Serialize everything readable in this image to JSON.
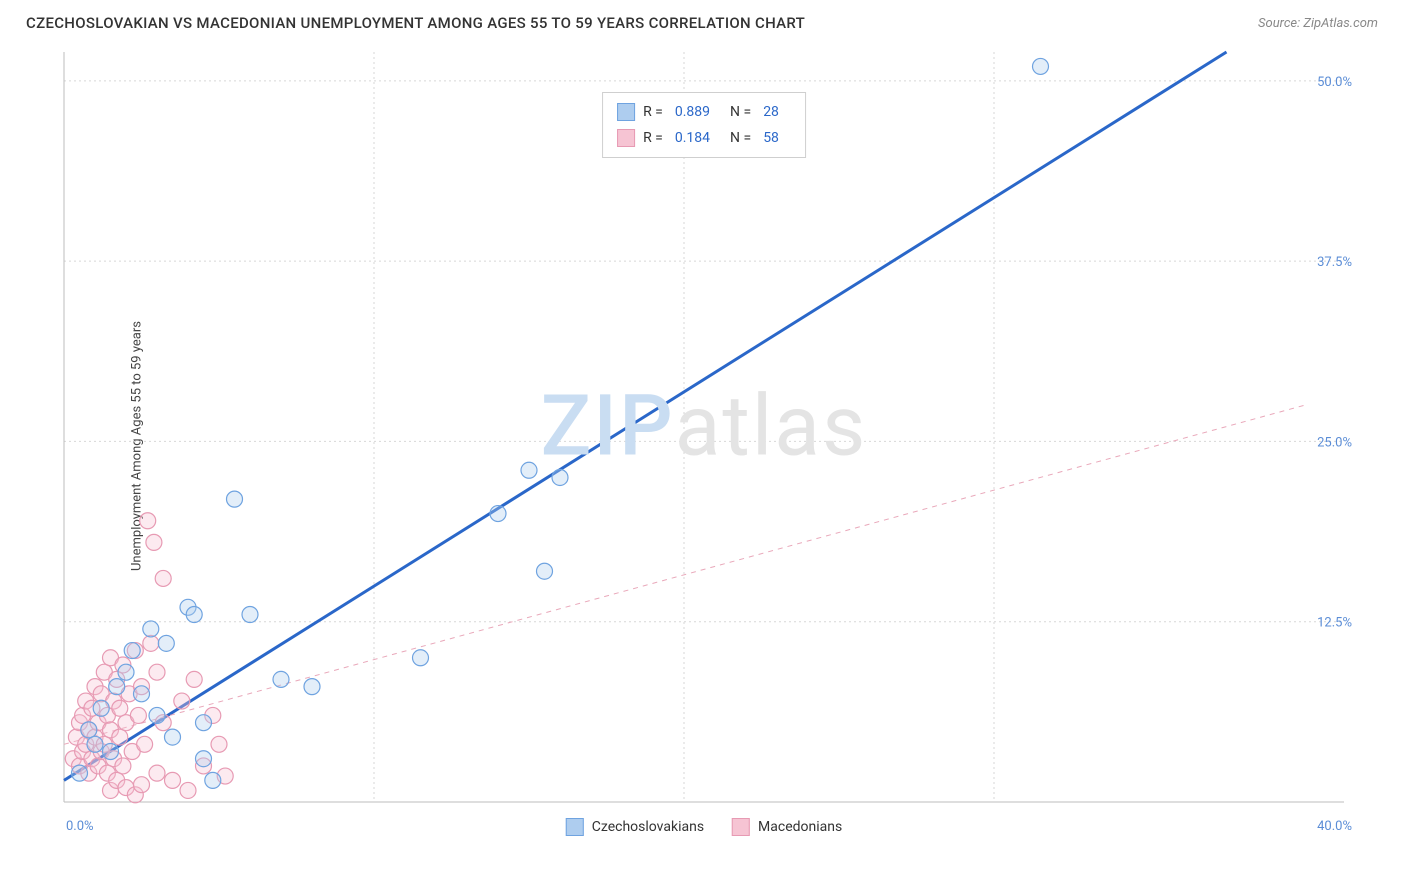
{
  "title": "CZECHOSLOVAKIAN VS MACEDONIAN UNEMPLOYMENT AMONG AGES 55 TO 59 YEARS CORRELATION CHART",
  "source": "Source: ZipAtlas.com",
  "ylabel": "Unemployment Among Ages 55 to 59 years",
  "watermark": {
    "part1": "ZIP",
    "part2": "atlas"
  },
  "chart": {
    "type": "scatter",
    "background_color": "#ffffff",
    "grid_color": "#d7d7d7",
    "axis_color": "#bdbdbd",
    "tick_label_color": "#5b8dd6",
    "tick_label_fontsize": 13,
    "title_fontsize": 15,
    "title_color": "#333333",
    "marker_radius": 8,
    "marker_fill_opacity": 0.35,
    "xlim": [
      0,
      40
    ],
    "ylim": [
      0,
      52
    ],
    "x_ticks": [
      {
        "value": 0,
        "label": "0.0%"
      },
      {
        "value": 40,
        "label": "40.0%"
      }
    ],
    "y_ticks": [
      {
        "value": 12.5,
        "label": "12.5%"
      },
      {
        "value": 25.0,
        "label": "25.0%"
      },
      {
        "value": 37.5,
        "label": "37.5%"
      },
      {
        "value": 50.0,
        "label": "50.0%"
      }
    ],
    "x_minor_grid": [
      10,
      20,
      30
    ],
    "series": [
      {
        "id": "czech",
        "name": "Czechoslovakians",
        "stroke": "#6fa3e0",
        "fill": "#aecdef",
        "r_value": "0.889",
        "n_value": "28",
        "trend": {
          "style": "solid",
          "color": "#2a67c9",
          "width": 3,
          "from": [
            0,
            1.5
          ],
          "to": [
            37.5,
            52
          ]
        },
        "points": [
          [
            0.5,
            2.0
          ],
          [
            0.8,
            5.0
          ],
          [
            1.0,
            4.0
          ],
          [
            1.2,
            6.5
          ],
          [
            1.5,
            3.5
          ],
          [
            1.7,
            8.0
          ],
          [
            2.0,
            9.0
          ],
          [
            2.2,
            10.5
          ],
          [
            2.5,
            7.5
          ],
          [
            2.8,
            12.0
          ],
          [
            3.0,
            6.0
          ],
          [
            3.3,
            11.0
          ],
          [
            3.5,
            4.5
          ],
          [
            4.0,
            13.5
          ],
          [
            4.2,
            13.0
          ],
          [
            4.5,
            3.0
          ],
          [
            4.5,
            5.5
          ],
          [
            4.8,
            1.5
          ],
          [
            5.5,
            21.0
          ],
          [
            6.0,
            13.0
          ],
          [
            7.0,
            8.5
          ],
          [
            8.0,
            8.0
          ],
          [
            11.5,
            10.0
          ],
          [
            14.0,
            20.0
          ],
          [
            15.0,
            23.0
          ],
          [
            15.5,
            16.0
          ],
          [
            16.0,
            22.5
          ],
          [
            31.5,
            51.0
          ]
        ]
      },
      {
        "id": "maced",
        "name": "Macedonians",
        "stroke": "#e79ab3",
        "fill": "#f6c4d3",
        "r_value": "0.184",
        "n_value": "58",
        "trend": {
          "style": "dashed",
          "color": "#e9a8ba",
          "width": 1,
          "from": [
            0,
            4.0
          ],
          "to": [
            40,
            27.5
          ]
        },
        "points": [
          [
            0.3,
            3.0
          ],
          [
            0.4,
            4.5
          ],
          [
            0.5,
            2.5
          ],
          [
            0.5,
            5.5
          ],
          [
            0.6,
            6.0
          ],
          [
            0.6,
            3.5
          ],
          [
            0.7,
            4.0
          ],
          [
            0.7,
            7.0
          ],
          [
            0.8,
            2.0
          ],
          [
            0.8,
            5.0
          ],
          [
            0.9,
            6.5
          ],
          [
            0.9,
            3.0
          ],
          [
            1.0,
            8.0
          ],
          [
            1.0,
            4.5
          ],
          [
            1.1,
            5.5
          ],
          [
            1.1,
            2.5
          ],
          [
            1.2,
            7.5
          ],
          [
            1.2,
            3.5
          ],
          [
            1.3,
            9.0
          ],
          [
            1.3,
            4.0
          ],
          [
            1.4,
            6.0
          ],
          [
            1.4,
            2.0
          ],
          [
            1.5,
            10.0
          ],
          [
            1.5,
            5.0
          ],
          [
            1.5,
            0.8
          ],
          [
            1.6,
            7.0
          ],
          [
            1.6,
            3.0
          ],
          [
            1.7,
            8.5
          ],
          [
            1.7,
            1.5
          ],
          [
            1.8,
            4.5
          ],
          [
            1.8,
            6.5
          ],
          [
            1.9,
            2.5
          ],
          [
            1.9,
            9.5
          ],
          [
            2.0,
            5.5
          ],
          [
            2.0,
            1.0
          ],
          [
            2.1,
            7.5
          ],
          [
            2.2,
            3.5
          ],
          [
            2.3,
            10.5
          ],
          [
            2.3,
            0.5
          ],
          [
            2.4,
            6.0
          ],
          [
            2.5,
            8.0
          ],
          [
            2.5,
            1.2
          ],
          [
            2.6,
            4.0
          ],
          [
            2.8,
            11.0
          ],
          [
            2.7,
            19.5
          ],
          [
            2.9,
            18.0
          ],
          [
            3.0,
            9.0
          ],
          [
            3.0,
            2.0
          ],
          [
            3.2,
            5.5
          ],
          [
            3.2,
            15.5
          ],
          [
            3.5,
            1.5
          ],
          [
            3.8,
            7.0
          ],
          [
            4.0,
            0.8
          ],
          [
            4.2,
            8.5
          ],
          [
            4.5,
            2.5
          ],
          [
            4.8,
            6.0
          ],
          [
            5.0,
            4.0
          ],
          [
            5.2,
            1.8
          ]
        ]
      }
    ],
    "legend_top": {
      "r_label": "R =",
      "n_label": "N ="
    },
    "legend_bottom": [
      {
        "series": "czech",
        "label": "Czechoslovakians"
      },
      {
        "series": "maced",
        "label": "Macedonians"
      }
    ]
  }
}
